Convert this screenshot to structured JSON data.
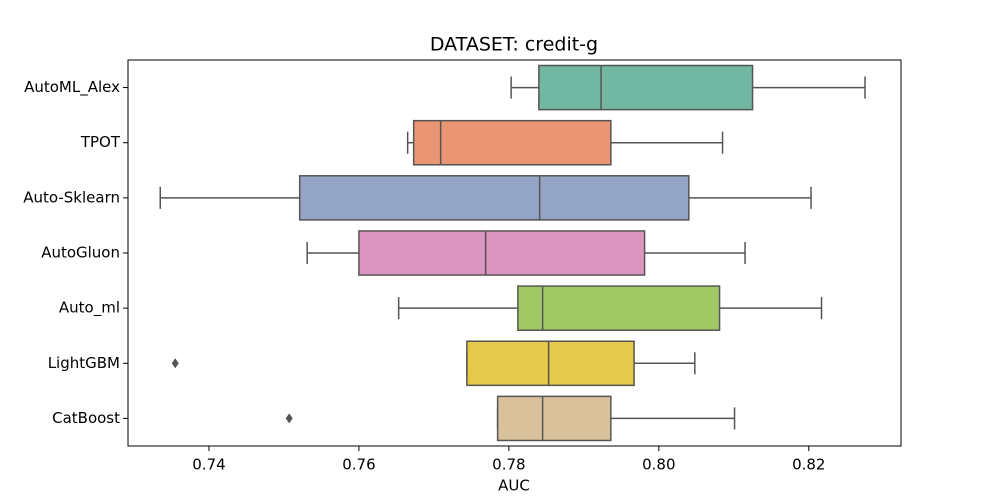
{
  "chart_data": {
    "type": "boxplot",
    "title": "DATASET: credit-g",
    "x_label": "AUC",
    "categories": [
      "AutoML_Alex",
      "TPOT",
      "Auto-Sklearn",
      "AutoGluon",
      "Auto_ml",
      "LightGBM",
      "CatBoost"
    ],
    "colors": [
      "#72b7a1",
      "#ea9674",
      "#94a4c4",
      "#dc94c0",
      "#a2c866",
      "#e5c94b",
      "#d9c19c"
    ],
    "min": [
      0.7803,
      0.7665,
      0.7335,
      0.7531,
      0.7653,
      0.7744,
      0.7785
    ],
    "q1": [
      0.784,
      0.7673,
      0.7521,
      0.76,
      0.7812,
      0.7744,
      0.7785
    ],
    "median": [
      0.7923,
      0.7709,
      0.7841,
      0.7769,
      0.7845,
      0.7853,
      0.7845
    ],
    "q3": [
      0.8125,
      0.7936,
      0.804,
      0.7981,
      0.8081,
      0.7967,
      0.7936
    ],
    "max": [
      0.8275,
      0.8085,
      0.8203,
      0.8115,
      0.8217,
      0.8048,
      0.8101
    ],
    "outliers": [
      [],
      [],
      [],
      [],
      [],
      [
        0.7355
      ],
      [
        0.7507
      ]
    ],
    "xlim": [
      0.7292,
      0.8323
    ],
    "xticks": [
      0.74,
      0.76,
      0.78,
      {
        "value": 0.8,
        "label": "0.80"
      },
      0.82
    ]
  }
}
